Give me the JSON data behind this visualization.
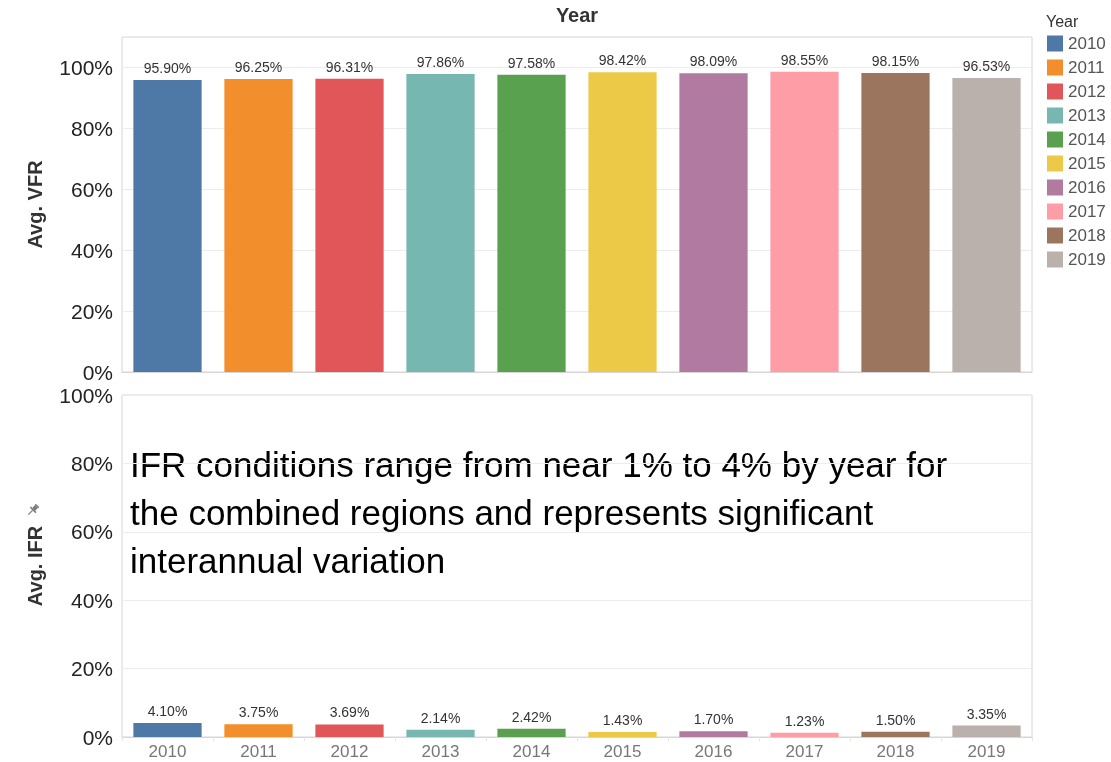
{
  "chart_data": [
    {
      "type": "bar",
      "xlabel": "Year",
      "ylabel": "Avg. VFR",
      "categories": [
        "2010",
        "2011",
        "2012",
        "2013",
        "2014",
        "2015",
        "2016",
        "2017",
        "2018",
        "2019"
      ],
      "series": [
        {
          "name": "2010",
          "color": "#4e79a7",
          "values": [
            95.9,
            null,
            null,
            null,
            null,
            null,
            null,
            null,
            null,
            null
          ],
          "value_labels": [
            "95.90%",
            null,
            null,
            null,
            null,
            null,
            null,
            null,
            null,
            null
          ]
        },
        {
          "name": "2011",
          "color": "#f28e2b",
          "values": [
            null,
            96.25,
            null,
            null,
            null,
            null,
            null,
            null,
            null,
            null
          ],
          "value_labels": [
            null,
            "96.25%",
            null,
            null,
            null,
            null,
            null,
            null,
            null,
            null
          ]
        },
        {
          "name": "2012",
          "color": "#e15759",
          "values": [
            null,
            null,
            96.31,
            null,
            null,
            null,
            null,
            null,
            null,
            null
          ],
          "value_labels": [
            null,
            null,
            "96.31%",
            null,
            null,
            null,
            null,
            null,
            null,
            null
          ]
        },
        {
          "name": "2013",
          "color": "#76b7b2",
          "values": [
            null,
            null,
            null,
            97.86,
            null,
            null,
            null,
            null,
            null,
            null
          ],
          "value_labels": [
            null,
            null,
            null,
            "97.86%",
            null,
            null,
            null,
            null,
            null,
            null
          ]
        },
        {
          "name": "2014",
          "color": "#59a14f",
          "values": [
            null,
            null,
            null,
            null,
            97.58,
            null,
            null,
            null,
            null,
            null
          ],
          "value_labels": [
            null,
            null,
            null,
            null,
            "97.58%",
            null,
            null,
            null,
            null,
            null
          ]
        },
        {
          "name": "2015",
          "color": "#edc948",
          "values": [
            null,
            null,
            null,
            null,
            null,
            98.42,
            null,
            null,
            null,
            null
          ],
          "value_labels": [
            null,
            null,
            null,
            null,
            null,
            "98.42%",
            null,
            null,
            null,
            null
          ]
        },
        {
          "name": "2016",
          "color": "#b07aa1",
          "values": [
            null,
            null,
            null,
            null,
            null,
            null,
            98.09,
            null,
            null,
            null
          ],
          "value_labels": [
            null,
            null,
            null,
            null,
            null,
            null,
            "98.09%",
            null,
            null,
            null
          ]
        },
        {
          "name": "2017",
          "color": "#ff9da7",
          "values": [
            null,
            null,
            null,
            null,
            null,
            null,
            null,
            98.55,
            null,
            null
          ],
          "value_labels": [
            null,
            null,
            null,
            null,
            null,
            null,
            null,
            "98.55%",
            null,
            null
          ]
        },
        {
          "name": "2018",
          "color": "#9c755f",
          "values": [
            null,
            null,
            null,
            null,
            null,
            null,
            null,
            null,
            98.15,
            null
          ],
          "value_labels": [
            null,
            null,
            null,
            null,
            null,
            null,
            null,
            null,
            "98.15%",
            null
          ]
        },
        {
          "name": "2019",
          "color": "#bab0ac",
          "values": [
            null,
            null,
            null,
            null,
            null,
            null,
            null,
            null,
            null,
            96.53
          ],
          "value_labels": [
            null,
            null,
            null,
            null,
            null,
            null,
            null,
            null,
            null,
            "96.53%"
          ]
        }
      ],
      "ylim": [
        0,
        110
      ],
      "yticks": [
        {
          "value": 0,
          "label": "0%"
        },
        {
          "value": 20,
          "label": "20%"
        },
        {
          "value": 40,
          "label": "40%"
        },
        {
          "value": 60,
          "label": "60%"
        },
        {
          "value": 80,
          "label": "80%"
        },
        {
          "value": 100,
          "label": "100%"
        }
      ],
      "grid": "y",
      "legend": "top right",
      "legend_title": "Year",
      "tick_labels": "y"
    },
    {
      "type": "bar",
      "ylabel": "Avg. IFR",
      "categories": [
        "2010",
        "2011",
        "2012",
        "2013",
        "2014",
        "2015",
        "2016",
        "2017",
        "2018",
        "2019"
      ],
      "values": [
        4.1,
        3.75,
        3.69,
        2.14,
        2.42,
        1.43,
        1.7,
        1.23,
        1.5,
        3.35
      ],
      "colors": [
        "#4e79a7",
        "#f28e2b",
        "#e15759",
        "#76b7b2",
        "#59a14f",
        "#edc948",
        "#b07aa1",
        "#ff9da7",
        "#9c755f",
        "#bab0ac"
      ],
      "value_labels": [
        "4.10%",
        "3.75%",
        "3.69%",
        "2.14%",
        "2.42%",
        "1.43%",
        "1.70%",
        "1.23%",
        "1.50%",
        "3.35%"
      ],
      "ylim": [
        0,
        100
      ],
      "yticks": [
        {
          "value": 0,
          "label": "0%"
        },
        {
          "value": 20,
          "label": "20%"
        },
        {
          "value": 40,
          "label": "40%"
        },
        {
          "value": 60,
          "label": "60%"
        },
        {
          "value": 80,
          "label": "80%"
        },
        {
          "value": 100,
          "label": "100%"
        }
      ],
      "grid": "y",
      "annotations": [
        "IFR conditions range from near 1% to 4% by year for the combined regions and represents significant interannual variation"
      ]
    }
  ]
}
